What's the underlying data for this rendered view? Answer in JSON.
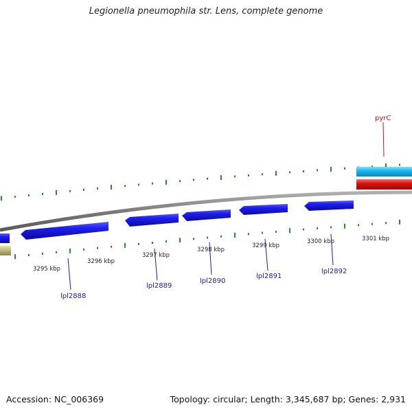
{
  "title": "Legionella pneumophila str. Lens, complete genome",
  "footer": {
    "accession": "Accession: NC_006369",
    "info": "Topology: circular; Length: 3,345,687 bp; Genes: 2,931"
  },
  "scale": {
    "unit": "kbp",
    "tick_labels": [
      "3295 kbp",
      "3296 kbp",
      "3297 kbp",
      "3298 kbp",
      "3299 kbp",
      "3300 kbp",
      "3301 kbp"
    ]
  },
  "genes": [
    {
      "name": "lpl2888",
      "strand": "reverse"
    },
    {
      "name": "lpl2889",
      "strand": "reverse"
    },
    {
      "name": "lpl2890",
      "strand": "reverse"
    },
    {
      "name": "lpl2891",
      "strand": "reverse"
    },
    {
      "name": "lpl2892",
      "strand": "reverse"
    },
    {
      "name": "pyrC",
      "strand": "forward"
    }
  ],
  "colors": {
    "reverse_gene": "#1414e0",
    "forward_gene_cyan": "#1ab8f0",
    "forward_gene_red": "#e01010",
    "partial_feature": "#b8b478",
    "tick": "#2a8a2a",
    "backbone": "#8a8a8a",
    "gene_label_blue": "#1a1ab0",
    "gene_label_red": "#cc1111"
  }
}
